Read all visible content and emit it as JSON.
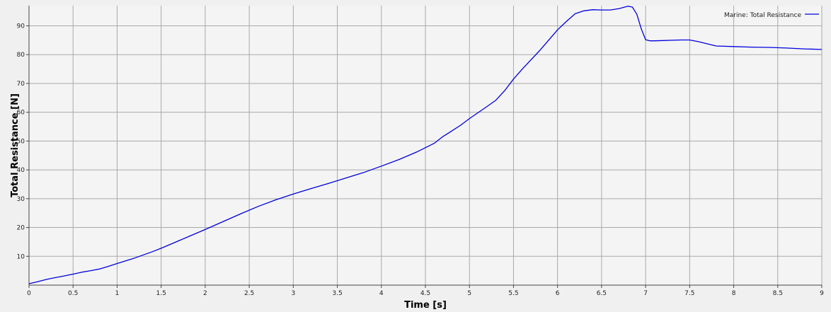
{
  "chart_data": {
    "type": "line",
    "xlabel": "Time [s]",
    "ylabel": "Total Resistance [N]",
    "xlim": [
      0,
      9
    ],
    "ylim": [
      0,
      97
    ],
    "x_ticks": [
      0,
      0.5,
      1,
      1.5,
      2,
      2.5,
      3,
      3.5,
      4,
      4.5,
      5,
      5.5,
      6,
      6.5,
      7,
      7.5,
      8,
      8.5,
      9
    ],
    "y_ticks": [
      10,
      20,
      30,
      40,
      50,
      60,
      70,
      80,
      90
    ],
    "grid": true,
    "legend_position": "top-right",
    "series": [
      {
        "name": "Marine: Total Resistance",
        "color": "#0000dd",
        "x": [
          0,
          0.1,
          0.2,
          0.3,
          0.4,
          0.5,
          0.6,
          0.7,
          0.8,
          0.9,
          1.0,
          1.2,
          1.4,
          1.5,
          1.6,
          1.8,
          2.0,
          2.2,
          2.4,
          2.6,
          2.8,
          3.0,
          3.2,
          3.4,
          3.6,
          3.8,
          4.0,
          4.2,
          4.4,
          4.6,
          4.7,
          4.8,
          4.9,
          5.0,
          5.2,
          5.3,
          5.4,
          5.5,
          5.6,
          5.8,
          6.0,
          6.1,
          6.2,
          6.3,
          6.4,
          6.5,
          6.6,
          6.7,
          6.8,
          6.85,
          6.9,
          6.95,
          7.0,
          7.05,
          7.1,
          7.2,
          7.3,
          7.4,
          7.5,
          7.6,
          7.8,
          8.0,
          8.2,
          8.4,
          8.6,
          8.8,
          9.0
        ],
        "y": [
          0.5,
          1.2,
          2.0,
          2.6,
          3.2,
          3.8,
          4.5,
          5.0,
          5.6,
          6.5,
          7.5,
          9.4,
          11.6,
          12.8,
          14.1,
          16.7,
          19.3,
          22.0,
          24.7,
          27.3,
          29.6,
          31.6,
          33.5,
          35.3,
          37.2,
          39.1,
          41.3,
          43.6,
          46.2,
          49.2,
          51.6,
          53.5,
          55.5,
          57.8,
          62.0,
          64.2,
          67.5,
          71.5,
          75.0,
          81.5,
          88.6,
          91.5,
          94.2,
          95.2,
          95.6,
          95.5,
          95.5,
          96.0,
          96.8,
          96.5,
          94.0,
          89.0,
          85.2,
          84.8,
          84.8,
          84.9,
          85.0,
          85.1,
          85.1,
          84.5,
          83.0,
          82.8,
          82.6,
          82.5,
          82.3,
          82.0,
          81.8
        ]
      }
    ]
  }
}
